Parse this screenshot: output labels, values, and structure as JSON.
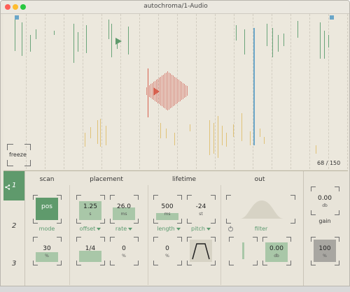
{
  "window": {
    "title": "autochroma/1-Audio"
  },
  "viz": {
    "freeze_label": "freeze",
    "counter": "68 / 150",
    "colors": {
      "green": "#6aa47a",
      "blue": "#6aa6c8",
      "red": "#d88a7e",
      "yellow": "#e0c278",
      "marker_blue": "#6aa6c8"
    }
  },
  "tabs": [
    "1",
    "2",
    "3"
  ],
  "sections": {
    "scan": "scan",
    "placement": "placement",
    "lifetime": "lifetime",
    "out": "out"
  },
  "params": {
    "mode": {
      "value": "pos",
      "label": "mode"
    },
    "offset": {
      "value": "1.25",
      "unit": "s",
      "label": "offset"
    },
    "rate": {
      "value": "26.0",
      "unit": "ms",
      "label": "rate"
    },
    "length": {
      "value": "500",
      "unit": "ms",
      "label": "length"
    },
    "pitch": {
      "value": "-24",
      "unit": "st",
      "label": "pitch"
    },
    "filter": {
      "label": "filter"
    },
    "scan_pct": {
      "value": "30",
      "unit": "%"
    },
    "offset_frac": {
      "value": "1/4"
    },
    "rate_pct": {
      "value": "0",
      "unit": "%"
    },
    "length_pct": {
      "value": "0",
      "unit": "%"
    },
    "out_db": {
      "value": "0.00",
      "unit": "db"
    }
  },
  "gain": {
    "top_value": "0.00",
    "top_unit": "db",
    "label": "gain",
    "bottom_value": "100",
    "bottom_unit": "%"
  }
}
